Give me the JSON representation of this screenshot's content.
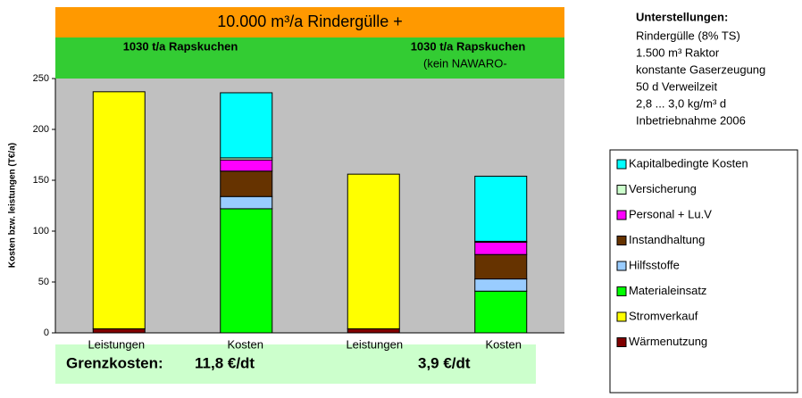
{
  "chart_data": {
    "type": "stacked_bar",
    "header": "10.000 m³/a Rindergülle +",
    "subheaders": [
      "1030 t/a Rapskuchen",
      "1030 t/a Rapskuchen",
      "(kein NAWARO-"
    ],
    "y_label": "Kosten bzw. leistungen (T€/a)",
    "categories": [
      "Leistungen",
      "Kosten",
      "Leistungen",
      "Kosten"
    ],
    "series": [
      {
        "name": "Wärmenutzung",
        "color": "#800000",
        "values": [
          4,
          null,
          4,
          null
        ]
      },
      {
        "name": "Stromverkauf",
        "color": "#ffff00",
        "values": [
          233,
          null,
          152,
          null
        ]
      },
      {
        "name": "Materialeinsatz",
        "color": "#00ff00",
        "values": [
          null,
          122,
          null,
          41
        ]
      },
      {
        "name": "Hilfsstoffe",
        "color": "#99ccff",
        "values": [
          null,
          12,
          null,
          12
        ]
      },
      {
        "name": "Instandhaltung",
        "color": "#663300",
        "values": [
          null,
          25,
          null,
          24
        ]
      },
      {
        "name": "Personal + Lu.V",
        "color": "#ff00ff",
        "values": [
          null,
          11,
          null,
          12
        ]
      },
      {
        "name": "Versicherung",
        "color": "#ccffcc",
        "values": [
          null,
          2,
          null,
          1
        ]
      },
      {
        "name": "Kapitalbedingte Kosten",
        "color": "#00ffff",
        "values": [
          null,
          64,
          null,
          64
        ]
      }
    ],
    "ylim": [
      0,
      250
    ],
    "yticks": [
      0,
      50,
      100,
      150,
      200,
      250
    ],
    "footer": {
      "label": "Grenzkosten:",
      "values": [
        "11,8 €/dt",
        "3,9 €/dt"
      ]
    },
    "notes": {
      "title": "Unterstellungen:",
      "lines": [
        "Rindergülle (8% TS)",
        "1.500 m³ Raktor",
        "konstante Gaserzeugung",
        "50 d Verweilzeit",
        "2,8 ... 3,0 kg/m³ d",
        "Inbetriebnahme 2006"
      ]
    }
  }
}
